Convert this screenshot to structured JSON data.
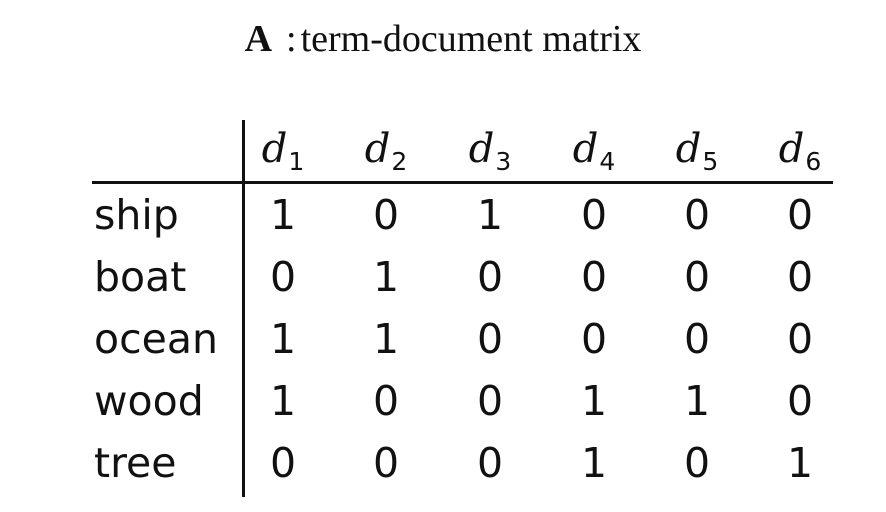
{
  "title": {
    "symbol": "A",
    "separator": ":",
    "text": "term-document matrix"
  },
  "matrix": {
    "doc_letter": "d",
    "columns": [
      "1",
      "2",
      "3",
      "4",
      "5",
      "6"
    ],
    "rows": [
      {
        "term": "ship",
        "values": [
          "1",
          "0",
          "1",
          "0",
          "0",
          "0"
        ]
      },
      {
        "term": "boat",
        "values": [
          "0",
          "1",
          "0",
          "0",
          "0",
          "0"
        ]
      },
      {
        "term": "ocean",
        "values": [
          "1",
          "1",
          "0",
          "0",
          "0",
          "0"
        ]
      },
      {
        "term": "wood",
        "values": [
          "1",
          "0",
          "0",
          "1",
          "1",
          "0"
        ]
      },
      {
        "term": "tree",
        "values": [
          "0",
          "0",
          "0",
          "1",
          "0",
          "1"
        ]
      }
    ]
  }
}
